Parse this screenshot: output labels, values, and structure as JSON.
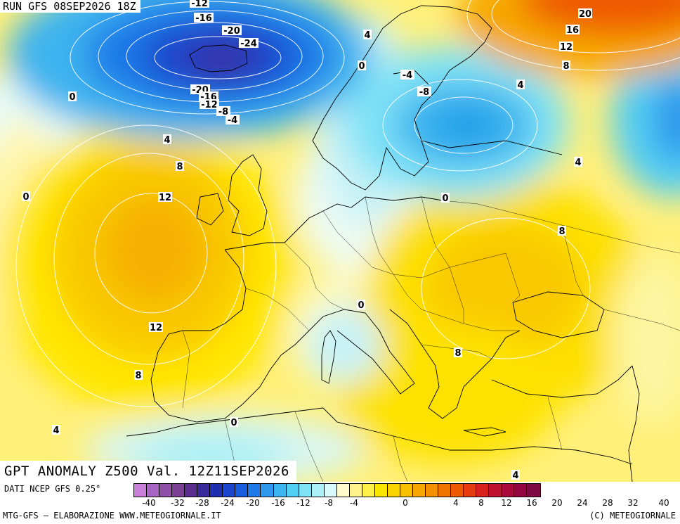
{
  "header": {
    "run_label": "RUN GFS 08SEP2026 18Z"
  },
  "title": "GPT ANOMALY Z500 Val. 12Z11SEP2026",
  "footer": {
    "source": "DATI NCEP GFS 0.25°",
    "credit_left": "MTG-GFS – ELABORAZIONE WWW.METEOGIORNALE.IT",
    "credit_right": "(C) METEOGIORNALE"
  },
  "colorbar": {
    "colors": [
      "#c87fd8",
      "#a964c2",
      "#9050a8",
      "#7b3f96",
      "#5a2f8e",
      "#3a2a9a",
      "#1f2fb0",
      "#1a45cc",
      "#1a5ee0",
      "#1f7ae8",
      "#2e98ec",
      "#3cb4ef",
      "#52cef3",
      "#7fe2f6",
      "#aef0f8",
      "#d8fafb",
      "#fffacc",
      "#fff28a",
      "#fff04a",
      "#fae500",
      "#f9d400",
      "#f8c000",
      "#f7a800",
      "#f59000",
      "#f27400",
      "#ee5800",
      "#e63a10",
      "#d8201c",
      "#c01030",
      "#a8083c",
      "#920640",
      "#7d0a44"
    ],
    "ticks": [
      "-40",
      "-32",
      "-28",
      "-24",
      "-20",
      "-16",
      "-12",
      "-8",
      "-4",
      "0",
      "4",
      "8",
      "12",
      "16",
      "20",
      "24",
      "28",
      "32",
      "40"
    ]
  },
  "contour_labels": [
    {
      "text": "-12"
    },
    {
      "text": "-16"
    },
    {
      "text": "-20"
    },
    {
      "text": "-24"
    },
    {
      "text": "-20"
    },
    {
      "text": "-16"
    },
    {
      "text": "-12"
    },
    {
      "text": "-8"
    },
    {
      "text": "-4"
    },
    {
      "text": "0"
    },
    {
      "text": "4"
    },
    {
      "text": "8"
    },
    {
      "text": "12"
    },
    {
      "text": "0"
    },
    {
      "text": "12"
    },
    {
      "text": "8"
    },
    {
      "text": "4"
    },
    {
      "text": "0"
    },
    {
      "text": "4"
    },
    {
      "text": "0"
    },
    {
      "text": "-4"
    },
    {
      "text": "-8"
    },
    {
      "text": "20"
    },
    {
      "text": "16"
    },
    {
      "text": "12"
    },
    {
      "text": "8"
    },
    {
      "text": "4"
    },
    {
      "text": "4"
    },
    {
      "text": "0"
    },
    {
      "text": "8"
    },
    {
      "text": "0"
    },
    {
      "text": "8"
    },
    {
      "text": "4"
    }
  ]
}
